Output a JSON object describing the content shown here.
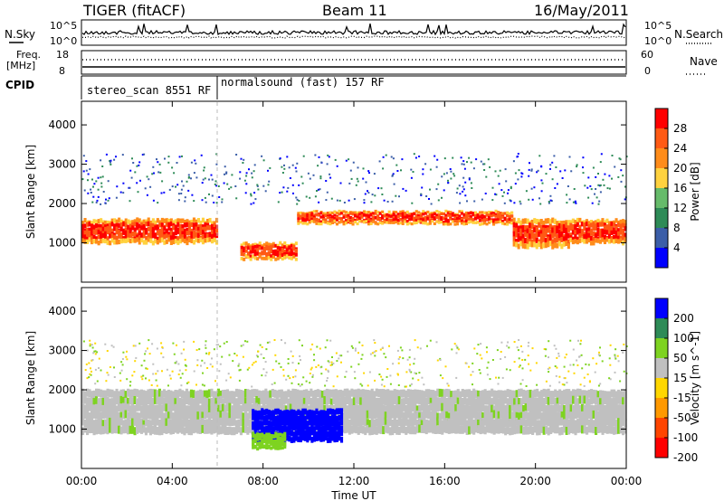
{
  "header": {
    "station": "TIGER (fitACF)",
    "beam": "Beam 11",
    "date": "16/May/2011"
  },
  "strip1": {
    "left_label": "N.Sky",
    "left_top": "10^5",
    "left_bottom": "10^0",
    "right_top": "10^5",
    "right_bottom": "10^0",
    "right_label": "N.Search"
  },
  "strip2": {
    "left_label_1": "Freq.",
    "left_label_2": "[MHz]",
    "left_top": "18",
    "left_bottom": "8",
    "right_top": "60",
    "right_bottom": "0",
    "right_label": "Nave"
  },
  "cpid": {
    "label": "CPID",
    "segments": [
      "stereo_scan 8551 RF",
      "normalsound (fast) 157 RF"
    ]
  },
  "colors": {
    "power": [
      "#0000ff",
      "#3b5ea8",
      "#2e8b57",
      "#66bb6a",
      "#ffd23f",
      "#ff8c1a",
      "#ff5a14",
      "#ff0000"
    ],
    "velocity": [
      "#ff0000",
      "#ff4500",
      "#ff9900",
      "#ffd700",
      "#c0c0c0",
      "#7ed321",
      "#2e8b57",
      "#0000ff"
    ]
  },
  "chart_data": [
    {
      "type": "heatmap",
      "ylabel": "Slant Range [km]",
      "yticks": [
        "1000",
        "2000",
        "3000",
        "4000"
      ],
      "ylim": [
        0,
        4600
      ],
      "xlim": [
        "00:00",
        "24:00"
      ],
      "colorbar": {
        "label": "Power [dB]",
        "ticks": [
          "4",
          "8",
          "12",
          "16",
          "20",
          "24",
          "28"
        ],
        "range": [
          0,
          30
        ]
      },
      "features": [
        {
          "time_start": "00:00",
          "time_end": "06:00",
          "range_km": [
            1000,
            1600
          ],
          "value_db": 28
        },
        {
          "time_start": "07:00",
          "time_end": "09:30",
          "range_km": [
            600,
            1000
          ],
          "value_db": 24
        },
        {
          "time_start": "09:30",
          "time_end": "19:00",
          "range_km": [
            1500,
            1800
          ],
          "value_db": 26
        },
        {
          "time_start": "19:00",
          "time_end": "21:30",
          "range_km": [
            900,
            1600
          ],
          "value_db": 26
        },
        {
          "time_start": "21:30",
          "time_end": "24:00",
          "range_km": [
            1000,
            1600
          ],
          "value_db": 28
        }
      ]
    },
    {
      "type": "heatmap",
      "ylabel": "Slant Range [km]",
      "xlabel": "Time UT",
      "yticks": [
        "1000",
        "2000",
        "3000",
        "4000"
      ],
      "xticks": [
        "00:00",
        "04:00",
        "08:00",
        "12:00",
        "16:00",
        "20:00",
        "00:00"
      ],
      "ylim": [
        0,
        4600
      ],
      "colorbar": {
        "label": "Velocity [m s^-1]",
        "ticks": [
          "200",
          "100",
          "50",
          "15",
          "-15",
          "-50",
          "-100",
          "-200"
        ],
        "range": [
          -250,
          250
        ]
      },
      "features": [
        {
          "time_start": "00:00",
          "time_end": "24:00",
          "range_km": [
            900,
            2000
          ],
          "value_ms": 0
        },
        {
          "time_start": "07:30",
          "time_end": "11:30",
          "range_km": [
            700,
            1500
          ],
          "value_ms": 220
        },
        {
          "time_start": "07:30",
          "time_end": "09:00",
          "range_km": [
            500,
            900
          ],
          "value_ms": 80
        }
      ]
    }
  ]
}
